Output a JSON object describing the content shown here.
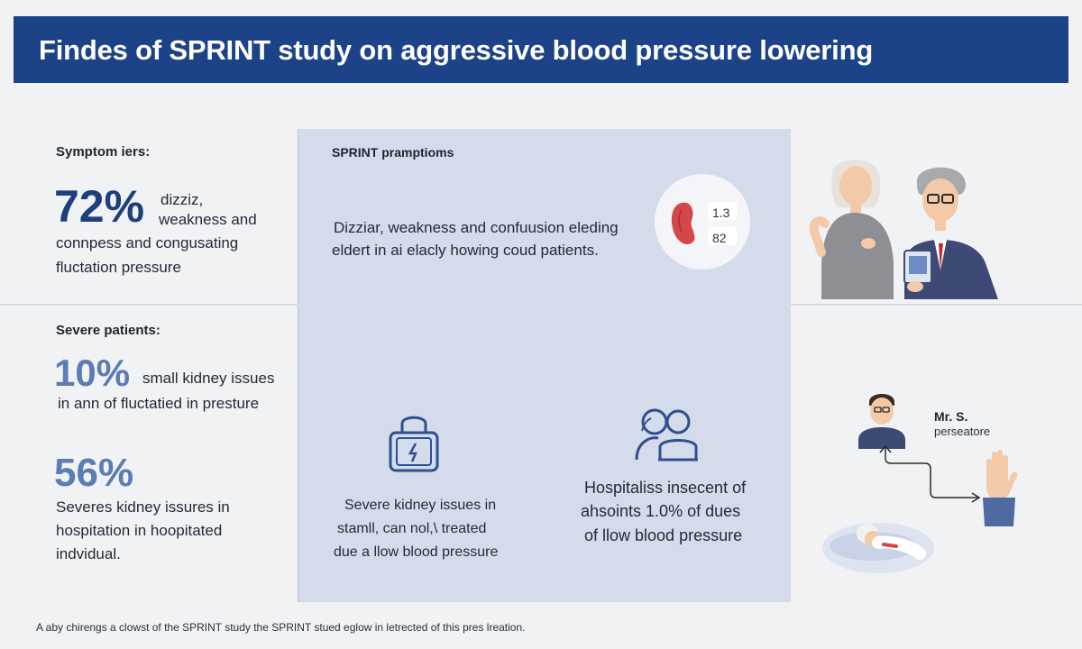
{
  "header": {
    "title": "Findes of SPRINT study on aggressive blood pressure lowering"
  },
  "left": {
    "section1": {
      "label": "Symptom iers:",
      "stat": "72%",
      "line1": "dizziz,",
      "line2": "weakness and",
      "line3": "connpess and congusating",
      "line4": "fluctation pressure"
    },
    "section2": {
      "label": "Severe patients:",
      "stat": "10%",
      "line1": "small kidney issues",
      "line2": "in ann of fluctatied in presture"
    },
    "section3": {
      "stat": "56%",
      "line1": "Severes kidney issures in",
      "line2": "hospitation in hoopitated",
      "line3": "indvidual."
    }
  },
  "center": {
    "title": "SPRINT pramptioms",
    "line1": "Dizziar, weakness and confuusion eleding",
    "line2": "eldert in ai elacly howing coud patients.",
    "bp_top": "1.3",
    "bp_bottom": "82",
    "card1": {
      "icon": "lock-icon",
      "line1": "Severe kidney issues in",
      "line2": "stamll, can nol,\\ treated",
      "line3": "due a llow blood pressure"
    },
    "card2": {
      "icon": "people-icon",
      "line1": "Hospitaliss insecent of",
      "line2": "ahsoints 1.0% of dues",
      "line3": "of llow blood pressure"
    }
  },
  "right": {
    "person_name": "Mr. S.",
    "person_role": "perseatore"
  },
  "footer": {
    "text": "A aby chirengs a clowst of the SPRINT study the SPRINT stued eglow in letrected of this pres lreation."
  },
  "colors": {
    "banner": "#1c4288",
    "accent": "#1d3f7e",
    "panel": "#d4dbea",
    "kidney": "#d4464a"
  }
}
